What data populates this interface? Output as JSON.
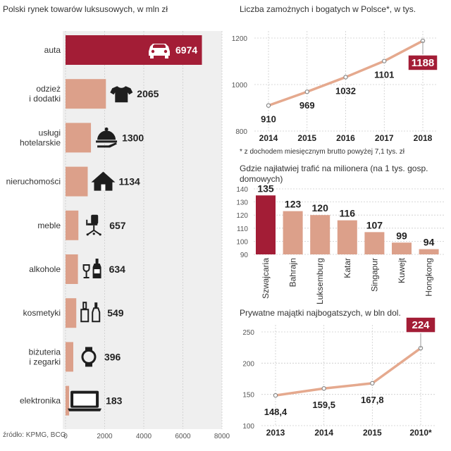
{
  "colors": {
    "accent": "#a31d36",
    "bar": "#dca08a",
    "line": "#e5a98e",
    "panel": "#efefef",
    "grid": "#cccccc",
    "icon": "#1e1e1e",
    "dot": "#8a8a8a"
  },
  "chart_data": [
    {
      "type": "bar",
      "orientation": "horizontal",
      "title": "Polski rynek towarów luksusowych, w mln zł",
      "categories": [
        "auta",
        "odzież\ni dodatki",
        "usługi\nhotelarskie",
        "nieruchomości",
        "meble",
        "alkohole",
        "kosmetyki",
        "biżuteria\ni zegarki",
        "elektronika"
      ],
      "values": [
        6974,
        2065,
        1300,
        1134,
        657,
        634,
        549,
        396,
        183
      ],
      "value_labels": [
        "6974",
        "2065",
        "1300",
        "1134",
        "657",
        "634",
        "549",
        "396",
        "183"
      ],
      "icons": [
        "car-icon",
        "tshirt-icon",
        "cloche-icon",
        "house-icon",
        "office-chair-icon",
        "bottles-icon",
        "cosmetics-icon",
        "watch-icon",
        "laptop-icon"
      ],
      "highlight_index": 0,
      "xlim": [
        0,
        8000
      ],
      "xticks": [
        "0",
        "2000",
        "4000",
        "6000",
        "8000"
      ],
      "source": "źródło: KPMG, BCG"
    },
    {
      "type": "line",
      "title": "Liczba zamożnych i bogatych w Polsce*, w tys.",
      "categories": [
        "2014",
        "2015",
        "2016",
        "2017",
        "2018"
      ],
      "values": [
        910,
        969,
        1032,
        1101,
        1188
      ],
      "value_labels": [
        "910",
        "969",
        "1032",
        "1101",
        "1188"
      ],
      "highlight_index": 4,
      "ylim": [
        800,
        1200
      ],
      "yticks": [
        "800",
        "1000",
        "1200"
      ],
      "footnote": "* z dochodem miesięcznym brutto powyżej 7,1 tys. zł"
    },
    {
      "type": "bar",
      "title": "Gdzie najłatwiej trafić na milionera (na 1 tys. gosp. domowych)",
      "title_lines": [
        "Gdzie najłatwiej trafić na milionera (na 1 tys. gosp.",
        "domowych)"
      ],
      "categories": [
        "Szwajcaria",
        "Bahrajn",
        "Luksemburg",
        "Katar",
        "Singapur",
        "Kuwejt",
        "Hongkong"
      ],
      "values": [
        135,
        123,
        120,
        116,
        107,
        99,
        94
      ],
      "value_labels": [
        "135",
        "123",
        "120",
        "116",
        "107",
        "99",
        "94"
      ],
      "highlight_index": 0,
      "ylim": [
        90,
        140
      ],
      "yticks": [
        "90",
        "100",
        "110",
        "120",
        "130",
        "140"
      ]
    },
    {
      "type": "line",
      "title": "Prywatne majątki najbogatszych, w bln dol.",
      "categories": [
        "2013",
        "2014",
        "2015",
        "2010*"
      ],
      "values": [
        148.4,
        159.5,
        167.8,
        224
      ],
      "value_labels": [
        "148,4",
        "159,5",
        "167,8",
        "224"
      ],
      "highlight_index": 3,
      "ylim": [
        100,
        250
      ],
      "yticks": [
        "100",
        "150",
        "200",
        "250"
      ]
    }
  ]
}
